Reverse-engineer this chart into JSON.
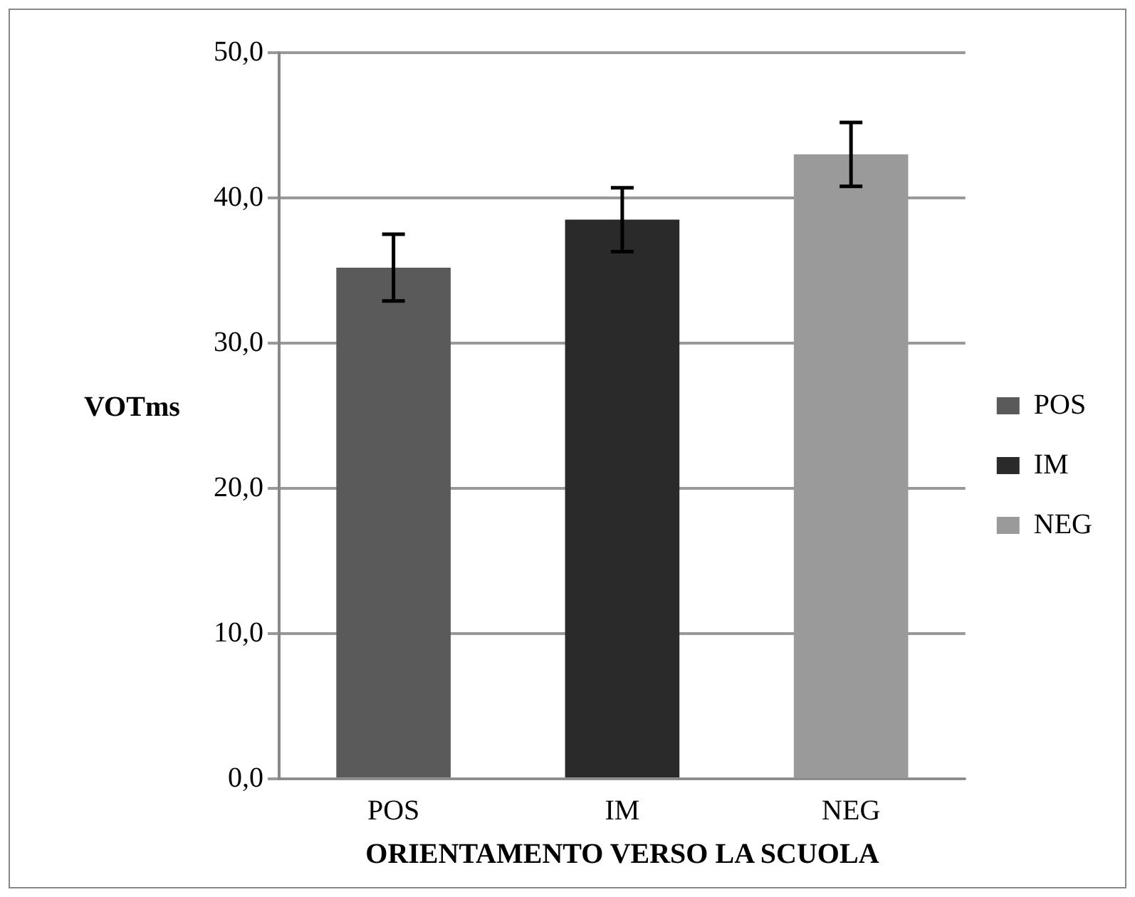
{
  "chart_data": {
    "type": "bar",
    "xlabel": "ORIENTAMENTO VERSO LA SCUOLA",
    "ylabel": "VOTms",
    "categories": [
      "POS",
      "IM",
      "NEG"
    ],
    "series": [
      {
        "name": "POS",
        "color": "#5a5a5a",
        "values": [
          35.2,
          null,
          null
        ],
        "errors": [
          2.3,
          null,
          null
        ]
      },
      {
        "name": "IM",
        "color": "#2a2a2a",
        "values": [
          null,
          38.5,
          null
        ],
        "errors": [
          null,
          2.2,
          null
        ]
      },
      {
        "name": "NEG",
        "color": "#9a9a9a",
        "values": [
          null,
          null,
          43.0
        ],
        "errors": [
          null,
          null,
          2.2
        ]
      }
    ],
    "ylim": [
      0,
      50
    ],
    "yticks": [
      {
        "value": 0,
        "label": "0,0"
      },
      {
        "value": 10,
        "label": "10,0"
      },
      {
        "value": 20,
        "label": "20,0"
      },
      {
        "value": 30,
        "label": "30,0"
      },
      {
        "value": 40,
        "label": "40,0"
      },
      {
        "value": 50,
        "label": "50,0"
      }
    ],
    "grid": "y",
    "legend": "right"
  }
}
